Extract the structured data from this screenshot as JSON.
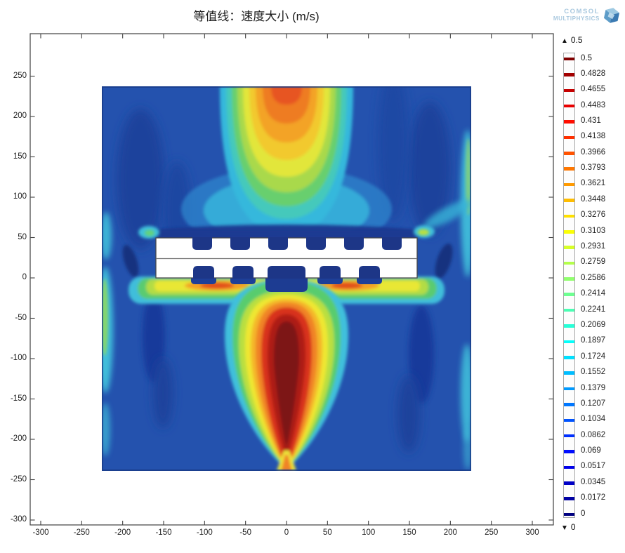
{
  "title": "等值线：速度大小 (m/s)",
  "logo": {
    "line1": "COMSOL",
    "line2": "MULTIPHYSICS"
  },
  "legend": {
    "top_marker": "0.5",
    "bottom_marker": "0",
    "values": [
      "0.5",
      "0.4828",
      "0.4655",
      "0.4483",
      "0.431",
      "0.4138",
      "0.3966",
      "0.3793",
      "0.3621",
      "0.3448",
      "0.3276",
      "0.3103",
      "0.2931",
      "0.2759",
      "0.2586",
      "0.2414",
      "0.2241",
      "0.2069",
      "0.1897",
      "0.1724",
      "0.1552",
      "0.1379",
      "0.1207",
      "0.1034",
      "0.0862",
      "0.069",
      "0.0517",
      "0.0345",
      "0.0172",
      "0"
    ]
  },
  "chart_data": {
    "type": "heatmap",
    "title": "等值线：速度大小 (m/s)",
    "quantity": "速度大小",
    "unit": "m/s",
    "x_ticks": [
      -300,
      -250,
      -200,
      -150,
      -100,
      -50,
      0,
      50,
      100,
      150,
      200,
      250,
      300
    ],
    "y_ticks": [
      250,
      200,
      150,
      100,
      50,
      0,
      -50,
      -100,
      -150,
      -200,
      -250,
      -300
    ],
    "grid": false,
    "legend_position": "right",
    "color_scale": {
      "min": 0,
      "max": 0.5,
      "n_levels": 30,
      "colormap": "jet/rainbow"
    },
    "field_domain": {
      "x_range": [
        -226,
        226
      ],
      "y_range": [
        -236,
        234
      ]
    },
    "features": [
      {
        "name": "downward-jet",
        "x": 0,
        "y_range": [
          -240,
          -30
        ],
        "peak_value": 0.5,
        "note": "dark-red core tapering to a point at bottom edge"
      },
      {
        "name": "upward-plume",
        "x": 0,
        "y_range": [
          100,
          235
        ],
        "peak_value": 0.45,
        "note": "orange-red at top edge fanning to cyan below"
      },
      {
        "name": "high-speed-band-under-plate",
        "y": -10,
        "x_range": [
          -200,
          200
        ],
        "peak_value": 0.43,
        "hotspot_x": [
          -85,
          75
        ]
      },
      {
        "name": "slotted-plate",
        "x_range": [
          -160,
          160
        ],
        "y_range": [
          0,
          50
        ],
        "value": 0,
        "note": "white plate with notches on top and bottom faces"
      },
      {
        "name": "background-flow",
        "value_range": [
          0.02,
          0.1
        ]
      },
      {
        "name": "wall-streaks",
        "x": [
          -225,
          225
        ],
        "value_range": [
          0.15,
          0.25
        ]
      }
    ]
  }
}
